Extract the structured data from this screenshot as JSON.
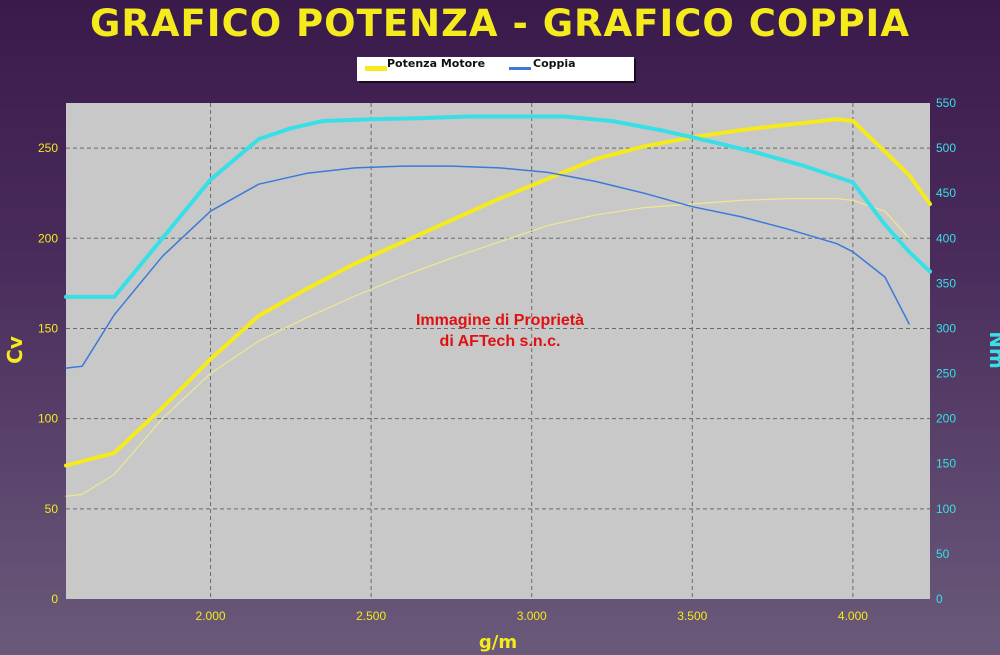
{
  "chart_data": {
    "type": "line",
    "title": "GRAFICO POTENZA - GRAFICO COPPIA",
    "xlabel": "g/m",
    "ylabel_left": "Cv",
    "ylabel_right": "Nm",
    "xlim": [
      1550,
      4240
    ],
    "ylim_left": [
      0,
      275
    ],
    "ylim_right": [
      0,
      550
    ],
    "x_ticks": [
      2000,
      2500,
      3000,
      3500,
      4000
    ],
    "x_tick_labels": [
      "2.000",
      "2.500",
      "3.000",
      "3.500",
      "4.000"
    ],
    "y_left_ticks": [
      0,
      50,
      100,
      150,
      200,
      250
    ],
    "y_right_ticks": [
      0,
      50,
      100,
      150,
      200,
      250,
      300,
      350,
      400,
      450,
      500,
      550
    ],
    "grid": true,
    "legend_position": "top-center",
    "legend": [
      "Potenza Motore",
      "Coppia"
    ],
    "watermark": [
      "Immagine di Proprietà",
      "di AFTech s.n.c."
    ],
    "colors": {
      "power_tuned": "#f4ea1c",
      "power_stock": "#eee890",
      "torque_tuned": "#38dfe6",
      "torque_stock": "#3a7ad8",
      "left_axis": "#f4ea1c",
      "right_axis": "#38dfe6",
      "plot_bg": "#c8c8c8",
      "watermark": "#e01010"
    },
    "series": [
      {
        "name": "Potenza Motore",
        "axis": "left",
        "x": [
          1550,
          1700,
          1850,
          2000,
          2150,
          2300,
          2450,
          2600,
          2750,
          2900,
          3050,
          3200,
          3350,
          3500,
          3650,
          3800,
          3950,
          4000,
          4100,
          4175,
          4240
        ],
        "values": [
          74,
          81,
          106,
          133,
          157,
          172,
          186,
          198,
          210,
          222,
          233,
          244,
          251,
          256,
          260,
          263,
          266,
          265,
          248,
          235,
          219
        ]
      },
      {
        "x": [
          1550,
          1600,
          1700,
          1850,
          2000,
          2150,
          2300,
          2450,
          2600,
          2750,
          2900,
          3050,
          3200,
          3350,
          3500,
          3650,
          3800,
          3950,
          4000,
          4100,
          4175
        ],
        "values": [
          57,
          58,
          69,
          100,
          125,
          143,
          156,
          168,
          179,
          189,
          198,
          207,
          213,
          217,
          219,
          221,
          222,
          222,
          221,
          215,
          200
        ],
        "axis": "left"
      },
      {
        "name": "Coppia",
        "axis": "right",
        "x": [
          1550,
          1700,
          1850,
          2000,
          2150,
          2250,
          2350,
          2500,
          2650,
          2800,
          2950,
          3100,
          3250,
          3400,
          3550,
          3700,
          3850,
          4000,
          4100,
          4175,
          4240
        ],
        "values": [
          335,
          335,
          400,
          465,
          510,
          522,
          530,
          532,
          533,
          535,
          535,
          535,
          530,
          520,
          508,
          495,
          480,
          462,
          415,
          385,
          363
        ]
      },
      {
        "x": [
          1550,
          1600,
          1700,
          1850,
          2000,
          2150,
          2300,
          2450,
          2600,
          2750,
          2900,
          3050,
          3200,
          3350,
          3500,
          3650,
          3800,
          3950,
          4000,
          4100,
          4175
        ],
        "values": [
          256,
          258,
          315,
          380,
          430,
          460,
          472,
          478,
          480,
          480,
          478,
          473,
          463,
          450,
          435,
          424,
          410,
          394,
          385,
          357,
          305
        ],
        "axis": "right"
      }
    ]
  }
}
